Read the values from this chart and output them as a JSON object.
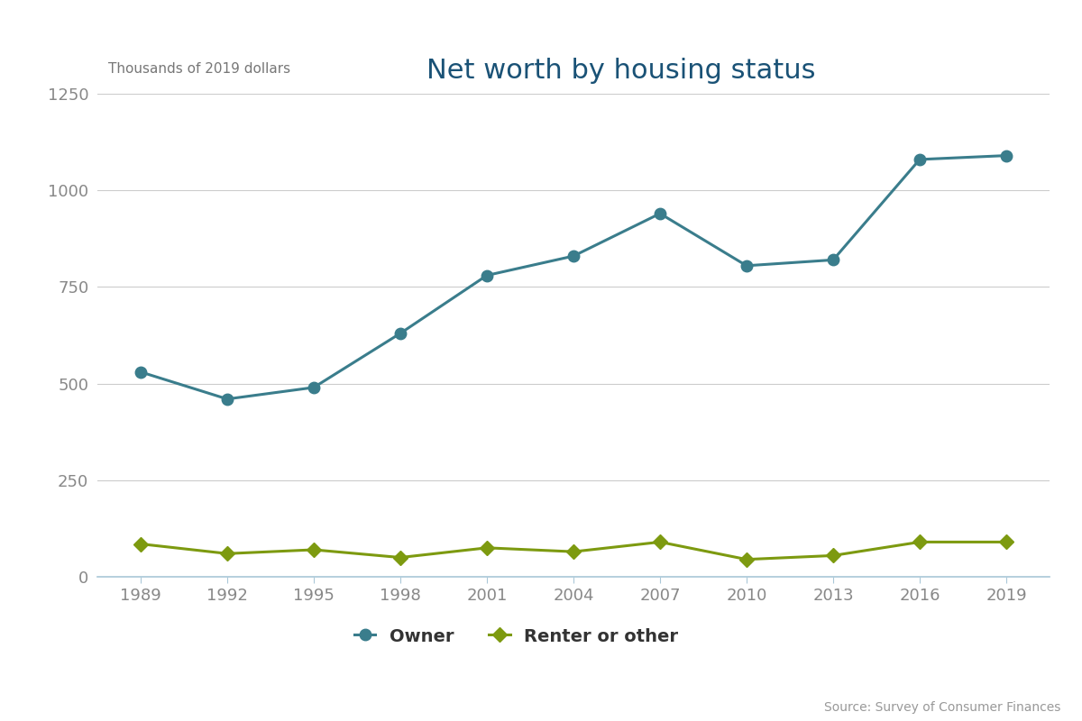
{
  "title": "Net worth by housing status",
  "subtitle": "Thousands of 2019 dollars",
  "source": "Source: Survey of Consumer Finances",
  "years": [
    1989,
    1992,
    1995,
    1998,
    2001,
    2004,
    2007,
    2010,
    2013,
    2016,
    2019
  ],
  "owner": [
    530,
    460,
    490,
    630,
    780,
    830,
    940,
    805,
    820,
    1080,
    1090
  ],
  "renter": [
    85,
    60,
    70,
    50,
    75,
    65,
    90,
    45,
    55,
    90,
    90
  ],
  "owner_color": "#3a7d8c",
  "renter_color": "#7d9a10",
  "title_color": "#1a5276",
  "subtitle_color": "#777777",
  "tick_label_color": "#888888",
  "grid_color": "#cccccc",
  "spine_color": "#aac8d8",
  "source_color": "#999999",
  "ylim": [
    0,
    1250
  ],
  "yticks": [
    0,
    250,
    500,
    750,
    1000,
    1250
  ],
  "background_color": "#ffffff",
  "owner_label": "Owner",
  "renter_label": "Renter or other"
}
